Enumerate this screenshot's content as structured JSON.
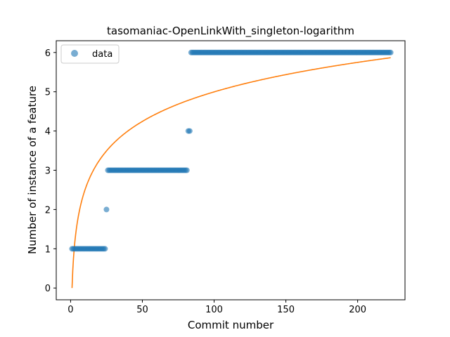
{
  "chart_data": {
    "type": "scatter",
    "title": "tasomaniac-OpenLinkWith_singleton-logarithm",
    "xlabel": "Commit number",
    "ylabel": "Number of instance of a feature",
    "xlim": [
      -10,
      233
    ],
    "ylim": [
      -0.3,
      6.3
    ],
    "xticks": [
      0,
      50,
      100,
      150,
      200
    ],
    "yticks": [
      0,
      1,
      2,
      3,
      4,
      5,
      6
    ],
    "grid": false,
    "legend_position": "top-left",
    "colors": {
      "data": "#1f77b4",
      "fit": "#ff7f0e"
    },
    "series": [
      {
        "name": "data",
        "kind": "scatter",
        "segments": [
          {
            "x_start": 1,
            "x_end": 24,
            "y": 1
          },
          {
            "x_start": 25,
            "x_end": 25,
            "y": 2
          },
          {
            "x_start": 26,
            "x_end": 81,
            "y": 3
          },
          {
            "x_start": 82,
            "x_end": 83,
            "y": 4
          },
          {
            "x_start": 84,
            "x_end": 223,
            "y": 6
          }
        ]
      },
      {
        "kind": "line",
        "model": "logarithm",
        "x_range": [
          1,
          223
        ],
        "coefficients": {
          "a": 1.085,
          "b": 0
        }
      }
    ]
  }
}
